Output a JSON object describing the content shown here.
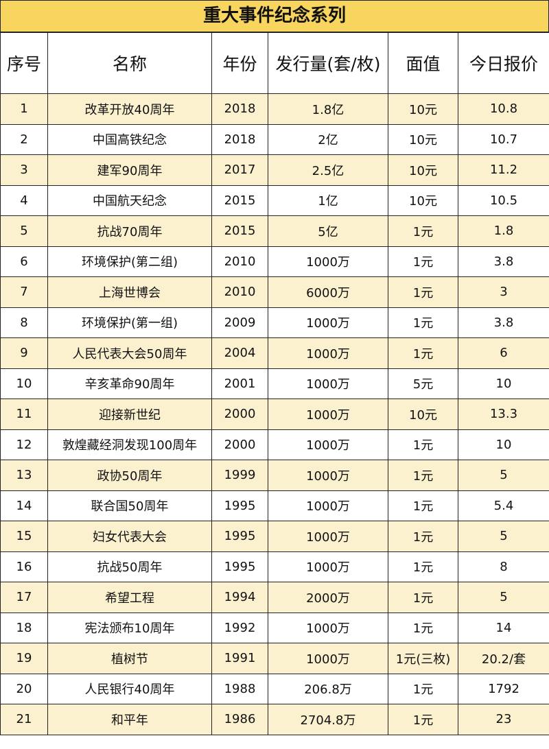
{
  "title": "重大事件纪念系列",
  "table": {
    "header": [
      "序号",
      "名称",
      "年份",
      "发行量(套/枚)",
      "面值",
      "今日报价"
    ],
    "rows": [
      [
        "1",
        "改革开放40周年",
        "2018",
        "1.8亿",
        "10元",
        "10.8"
      ],
      [
        "2",
        "中国高铁纪念",
        "2018",
        "2亿",
        "10元",
        "10.7"
      ],
      [
        "3",
        "建军90周年",
        "2017",
        "2.5亿",
        "10元",
        "11.2"
      ],
      [
        "4",
        "中国航天纪念",
        "2015",
        "1亿",
        "10元",
        "10.5"
      ],
      [
        "5",
        "抗战70周年",
        "2015",
        "5亿",
        "1元",
        "1.8"
      ],
      [
        "6",
        "环境保护(第二组)",
        "2010",
        "1000万",
        "1元",
        "3.8"
      ],
      [
        "7",
        "上海世博会",
        "2010",
        "6000万",
        "1元",
        "3"
      ],
      [
        "8",
        "环境保护(第一组)",
        "2009",
        "1000万",
        "1元",
        "3.8"
      ],
      [
        "9",
        "人民代表大会50周年",
        "2004",
        "1000万",
        "1元",
        "6"
      ],
      [
        "10",
        "辛亥革命90周年",
        "2001",
        "1000万",
        "5元",
        "10"
      ],
      [
        "11",
        "迎接新世纪",
        "2000",
        "1000万",
        "10元",
        "13.3"
      ],
      [
        "12",
        "敦煌藏经洞发现100周年",
        "2000",
        "1000万",
        "1元",
        "10"
      ],
      [
        "13",
        "政协50周年",
        "1999",
        "1000万",
        "1元",
        "5"
      ],
      [
        "14",
        "联合国50周年",
        "1995",
        "1000万",
        "1元",
        "5.4"
      ],
      [
        "15",
        "妇女代表大会",
        "1995",
        "1000万",
        "1元",
        "5"
      ],
      [
        "16",
        "抗战50周年",
        "1995",
        "1000万",
        "1元",
        "8"
      ],
      [
        "17",
        "希望工程",
        "1994",
        "2000万",
        "1元",
        "5"
      ],
      [
        "18",
        "宪法颁布10周年",
        "1992",
        "1000万",
        "1元",
        "14"
      ],
      [
        "19",
        "植树节",
        "1991",
        "1000万",
        "1元(三枚)",
        "20.2/套"
      ],
      [
        "20",
        "人民银行40周年",
        "1988",
        "206.8万",
        "1元",
        "1792"
      ],
      [
        "21",
        "和平年",
        "1986",
        "2704.8万",
        "1元",
        "23"
      ]
    ]
  }
}
